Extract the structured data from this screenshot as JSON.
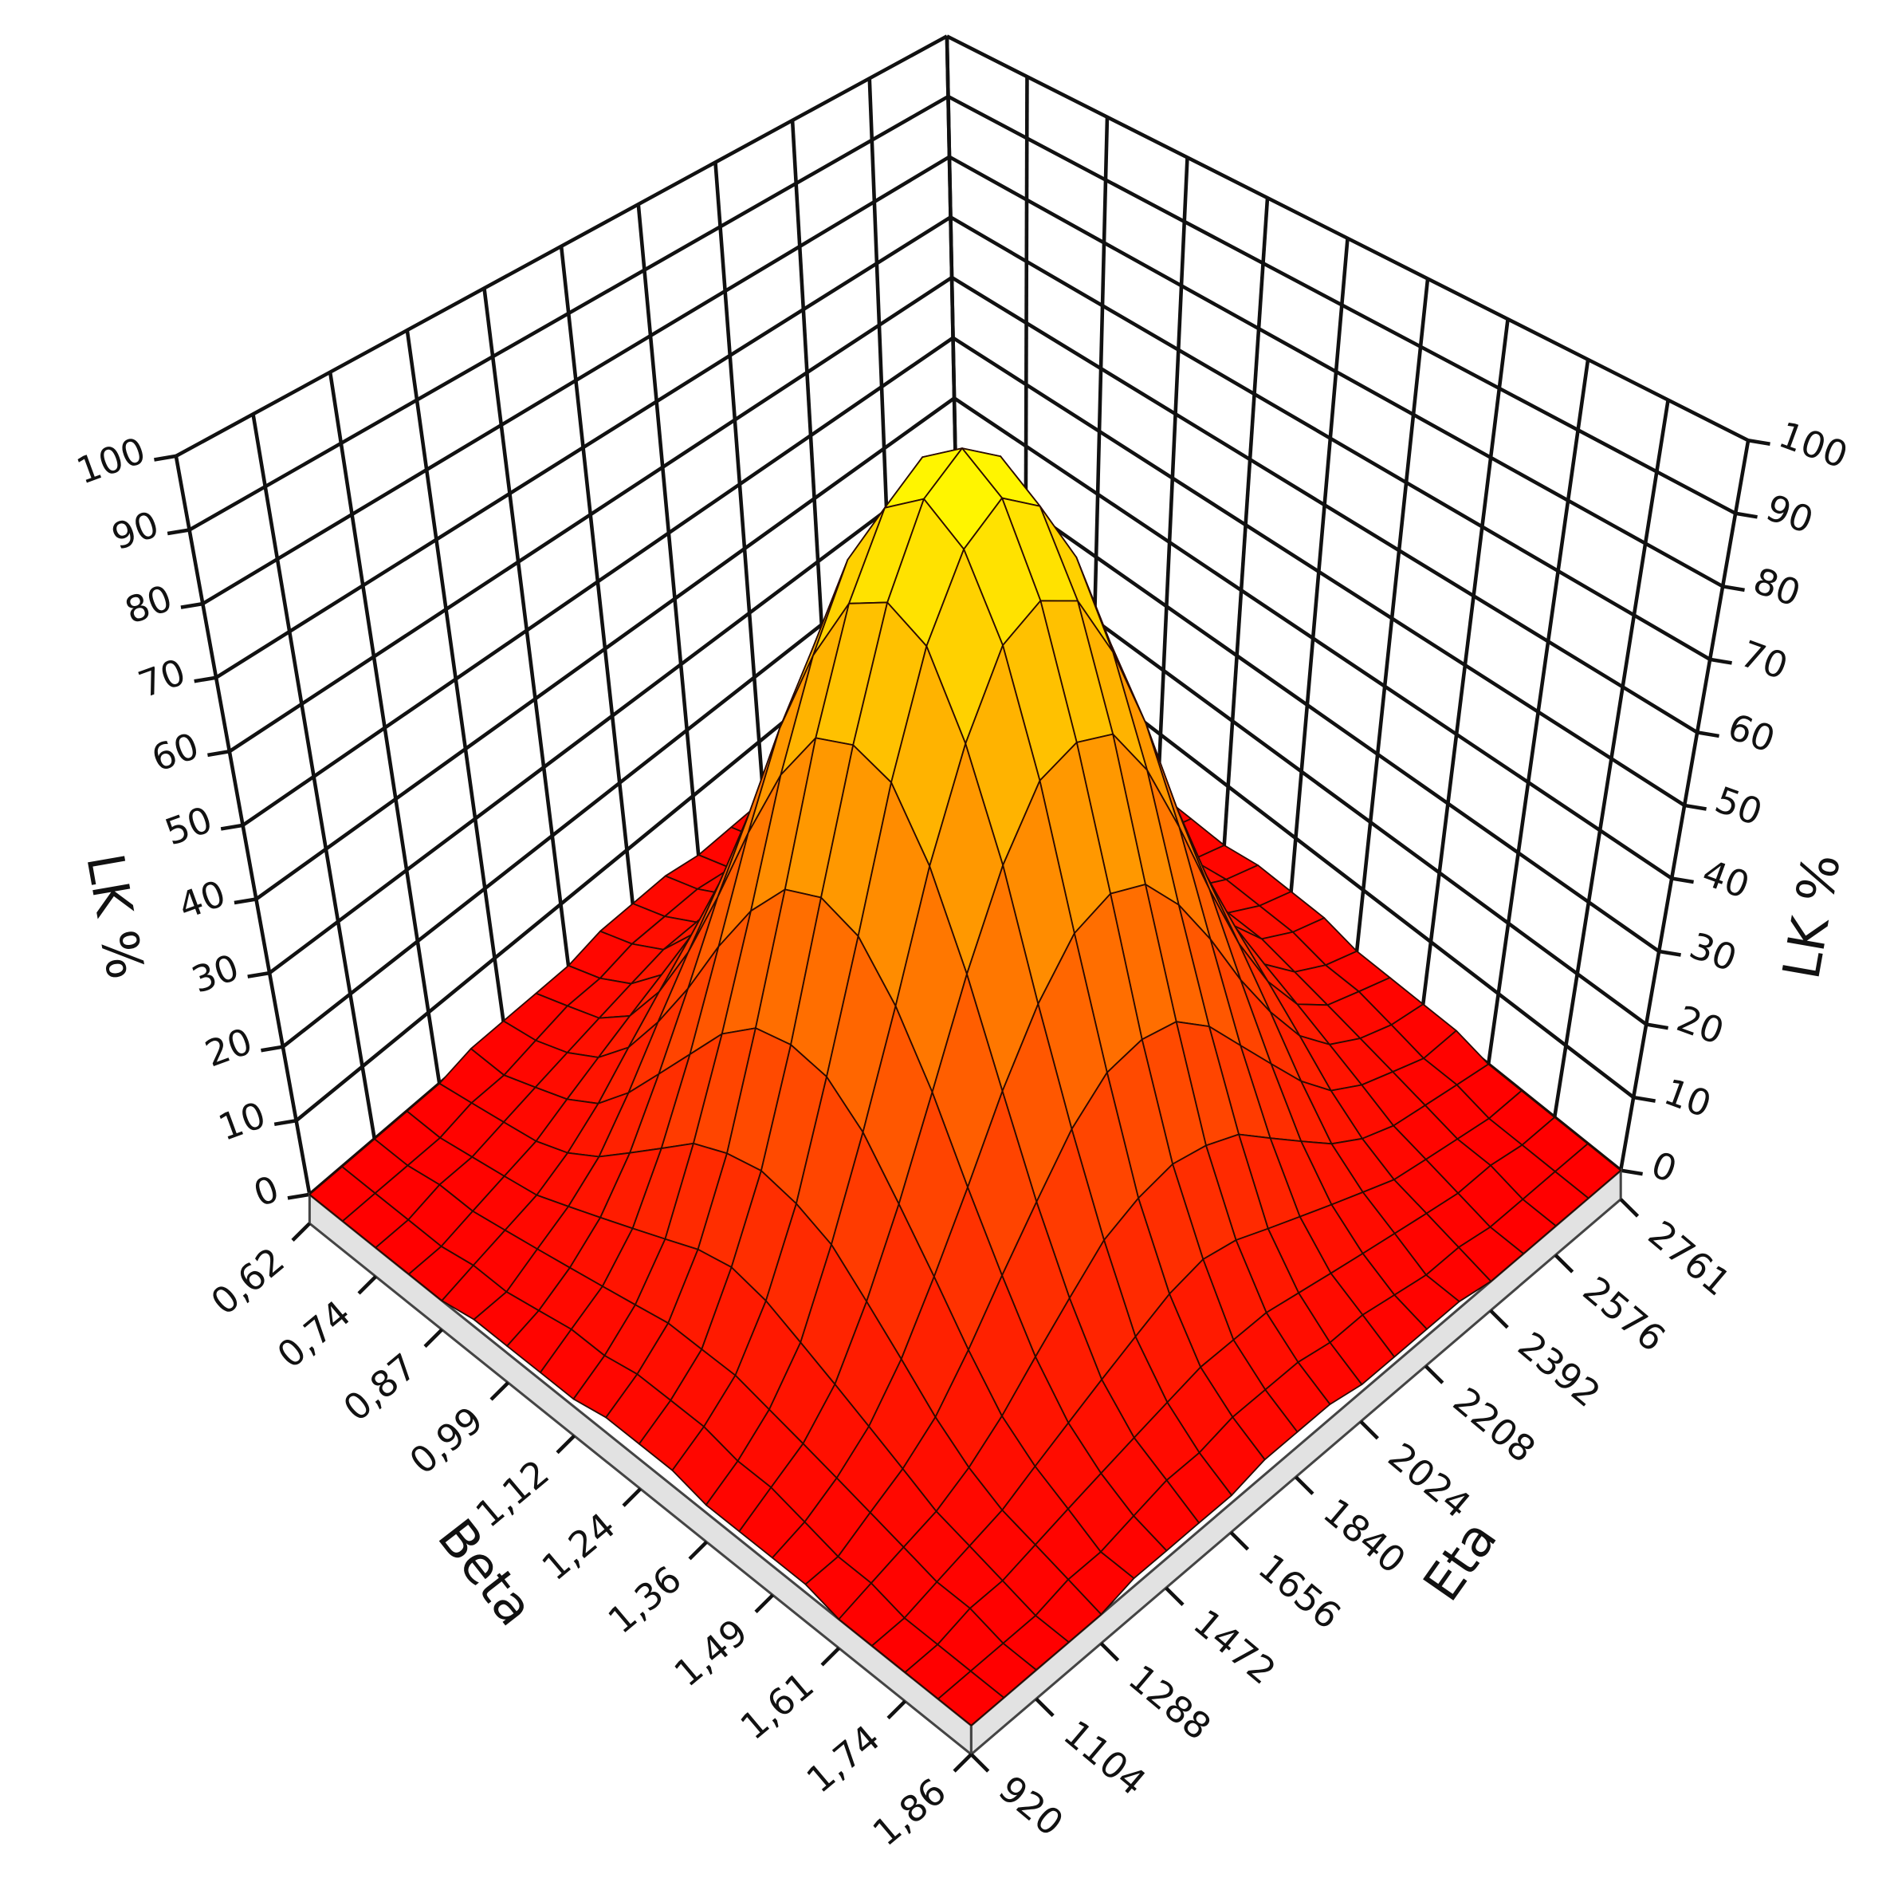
{
  "chart_data": {
    "type": "surface",
    "xlabel": "Beta",
    "ylabel": "Eta",
    "zlabel": "LK %",
    "xlim": [
      0.62,
      1.86
    ],
    "xticks": [
      {
        "value": 0.62,
        "label": "0,62"
      },
      {
        "value": 0.744,
        "label": "0,74"
      },
      {
        "value": 0.868,
        "label": "0,87"
      },
      {
        "value": 0.992,
        "label": "0,99"
      },
      {
        "value": 1.116,
        "label": "1,12"
      },
      {
        "value": 1.24,
        "label": "1,24"
      },
      {
        "value": 1.364,
        "label": "1,36"
      },
      {
        "value": 1.488,
        "label": "1,49"
      },
      {
        "value": 1.612,
        "label": "1,61"
      },
      {
        "value": 1.736,
        "label": "1,74"
      },
      {
        "value": 1.86,
        "label": "1,86"
      }
    ],
    "ylim": [
      920,
      2761
    ],
    "yticks": [
      920,
      1104,
      1288,
      1472,
      1656,
      1840,
      2024,
      2208,
      2392,
      2576,
      2761
    ],
    "zlim": [
      0,
      100
    ],
    "zticks": [
      0,
      10,
      20,
      30,
      40,
      50,
      60,
      70,
      80,
      90,
      100
    ],
    "colors": [
      "#ff0000",
      "#ffff00"
    ],
    "z": [
      [
        0,
        0,
        0,
        0,
        0,
        1,
        1,
        1,
        1,
        2,
        2,
        2,
        1,
        1,
        1,
        1,
        0,
        0,
        0,
        0,
        0
      ],
      [
        0,
        0,
        0,
        0,
        1,
        1,
        2,
        3,
        3,
        4,
        4,
        4,
        3,
        3,
        2,
        1,
        1,
        0,
        0,
        0,
        0
      ],
      [
        0,
        0,
        1,
        1,
        2,
        3,
        4,
        5,
        6,
        7,
        7,
        7,
        6,
        5,
        4,
        3,
        2,
        1,
        1,
        0,
        0
      ],
      [
        0,
        0,
        1,
        2,
        3,
        5,
        7,
        9,
        11,
        13,
        14,
        13,
        11,
        9,
        7,
        5,
        3,
        2,
        1,
        0,
        0
      ],
      [
        0,
        1,
        2,
        3,
        5,
        8,
        12,
        16,
        20,
        22,
        23,
        22,
        20,
        16,
        12,
        8,
        5,
        3,
        2,
        1,
        0
      ],
      [
        1,
        1,
        3,
        5,
        8,
        13,
        19,
        25,
        31,
        35,
        36,
        35,
        31,
        25,
        19,
        13,
        8,
        5,
        3,
        1,
        1
      ],
      [
        1,
        2,
        4,
        7,
        12,
        19,
        27,
        36,
        44,
        50,
        52,
        50,
        44,
        36,
        27,
        19,
        12,
        7,
        4,
        2,
        1
      ],
      [
        1,
        3,
        5,
        9,
        16,
        25,
        36,
        48,
        59,
        67,
        69,
        67,
        59,
        48,
        36,
        25,
        16,
        9,
        5,
        3,
        1
      ],
      [
        1,
        3,
        6,
        11,
        20,
        31,
        44,
        59,
        72,
        82,
        85,
        82,
        72,
        59,
        44,
        31,
        20,
        11,
        6,
        3,
        1
      ],
      [
        2,
        4,
        7,
        13,
        22,
        35,
        50,
        67,
        82,
        92,
        96,
        92,
        82,
        67,
        50,
        35,
        22,
        13,
        7,
        4,
        2
      ],
      [
        2,
        4,
        7,
        14,
        23,
        36,
        52,
        69,
        85,
        96,
        100,
        96,
        85,
        69,
        52,
        36,
        23,
        14,
        7,
        4,
        2
      ],
      [
        2,
        4,
        7,
        13,
        22,
        35,
        50,
        67,
        82,
        92,
        96,
        92,
        82,
        67,
        50,
        35,
        22,
        13,
        7,
        4,
        2
      ],
      [
        1,
        3,
        6,
        11,
        20,
        31,
        44,
        59,
        72,
        82,
        85,
        82,
        72,
        59,
        44,
        31,
        20,
        11,
        6,
        3,
        1
      ],
      [
        1,
        3,
        5,
        9,
        16,
        25,
        36,
        48,
        59,
        67,
        69,
        67,
        59,
        48,
        36,
        25,
        16,
        9,
        5,
        3,
        1
      ],
      [
        1,
        2,
        4,
        7,
        12,
        19,
        27,
        36,
        44,
        50,
        52,
        50,
        44,
        36,
        27,
        19,
        12,
        7,
        4,
        2,
        1
      ],
      [
        1,
        1,
        3,
        5,
        8,
        13,
        19,
        25,
        31,
        35,
        36,
        35,
        31,
        25,
        19,
        13,
        8,
        5,
        3,
        1,
        1
      ],
      [
        0,
        1,
        2,
        3,
        5,
        8,
        12,
        16,
        20,
        22,
        23,
        22,
        20,
        16,
        12,
        8,
        5,
        3,
        2,
        1,
        0
      ],
      [
        0,
        0,
        1,
        2,
        3,
        5,
        7,
        9,
        11,
        13,
        14,
        13,
        11,
        9,
        7,
        5,
        3,
        2,
        1,
        0,
        0
      ],
      [
        0,
        0,
        1,
        1,
        2,
        3,
        4,
        5,
        6,
        7,
        7,
        7,
        6,
        5,
        4,
        3,
        2,
        1,
        1,
        0,
        0
      ],
      [
        0,
        0,
        0,
        0,
        1,
        1,
        2,
        3,
        3,
        4,
        4,
        4,
        3,
        3,
        2,
        1,
        1,
        0,
        0,
        0,
        0
      ],
      [
        0,
        0,
        0,
        0,
        0,
        1,
        1,
        1,
        1,
        2,
        2,
        2,
        1,
        1,
        1,
        1,
        0,
        0,
        0,
        0,
        0
      ]
    ]
  }
}
